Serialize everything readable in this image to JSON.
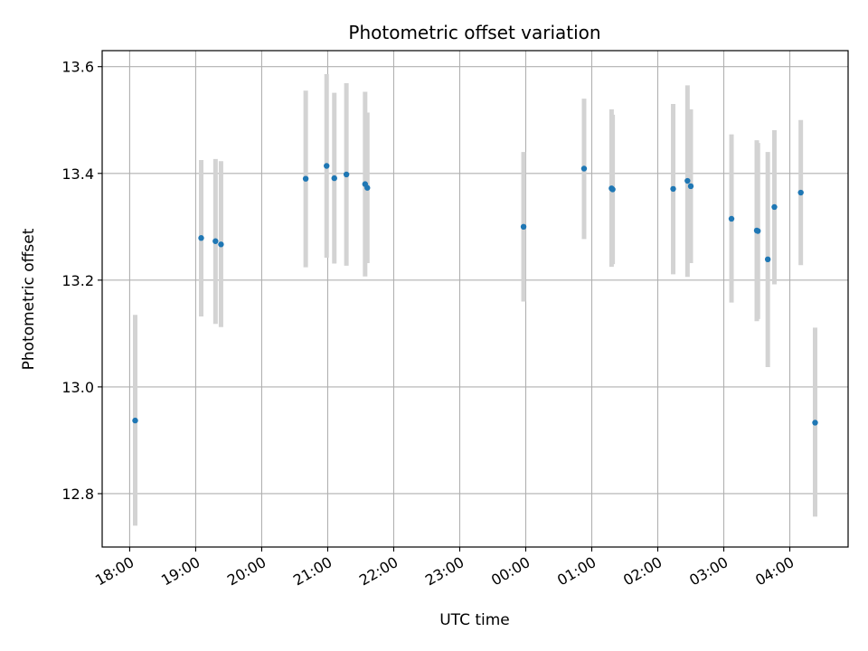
{
  "chart_data": {
    "type": "scatter",
    "title": "Photometric offset variation",
    "xlabel": "UTC time",
    "ylabel": "Photometric offset",
    "x_ticks": [
      "18:00",
      "19:00",
      "20:00",
      "21:00",
      "22:00",
      "23:00",
      "00:00",
      "01:00",
      "02:00",
      "03:00",
      "04:00"
    ],
    "y_ticks": [
      "12.8",
      "13.0",
      "13.2",
      "13.4",
      "13.6"
    ],
    "xlim": [
      "17:35",
      "04:53"
    ],
    "ylim": [
      12.7,
      13.63
    ],
    "grid": true,
    "colors": {
      "point": "#1f77b4",
      "errorbar": "#d3d3d3",
      "grid": "#b0b0b0"
    },
    "points": [
      {
        "x": "18:05",
        "y": 12.937,
        "ylo": 12.74,
        "yhi": 13.135
      },
      {
        "x": "19:05",
        "y": 13.279,
        "ylo": 13.132,
        "yhi": 13.425
      },
      {
        "x": "19:18",
        "y": 13.273,
        "ylo": 13.118,
        "yhi": 13.427
      },
      {
        "x": "19:23",
        "y": 13.267,
        "ylo": 13.112,
        "yhi": 13.423
      },
      {
        "x": "20:40",
        "y": 13.39,
        "ylo": 13.224,
        "yhi": 13.555
      },
      {
        "x": "20:59",
        "y": 13.414,
        "ylo": 13.242,
        "yhi": 13.586
      },
      {
        "x": "21:06",
        "y": 13.391,
        "ylo": 13.231,
        "yhi": 13.551
      },
      {
        "x": "21:17",
        "y": 13.398,
        "ylo": 13.227,
        "yhi": 13.569
      },
      {
        "x": "21:34",
        "y": 13.38,
        "ylo": 13.207,
        "yhi": 13.553
      },
      {
        "x": "21:36",
        "y": 13.373,
        "ylo": 13.232,
        "yhi": 13.514
      },
      {
        "x": "23:58",
        "y": 13.3,
        "ylo": 13.16,
        "yhi": 13.44
      },
      {
        "x": "00:53",
        "y": 13.409,
        "ylo": 13.277,
        "yhi": 13.54
      },
      {
        "x": "01:18",
        "y": 13.372,
        "ylo": 13.225,
        "yhi": 13.52
      },
      {
        "x": "01:19",
        "y": 13.37,
        "ylo": 13.23,
        "yhi": 13.51
      },
      {
        "x": "02:14",
        "y": 13.371,
        "ylo": 13.211,
        "yhi": 13.53
      },
      {
        "x": "02:27",
        "y": 13.386,
        "ylo": 13.206,
        "yhi": 13.565
      },
      {
        "x": "02:30",
        "y": 13.376,
        "ylo": 13.232,
        "yhi": 13.52
      },
      {
        "x": "03:07",
        "y": 13.315,
        "ylo": 13.158,
        "yhi": 13.473
      },
      {
        "x": "03:30",
        "y": 13.293,
        "ylo": 13.123,
        "yhi": 13.462
      },
      {
        "x": "03:31",
        "y": 13.292,
        "ylo": 13.127,
        "yhi": 13.457
      },
      {
        "x": "03:40",
        "y": 13.239,
        "ylo": 13.037,
        "yhi": 13.44
      },
      {
        "x": "03:46",
        "y": 13.337,
        "ylo": 13.192,
        "yhi": 13.481
      },
      {
        "x": "04:10",
        "y": 13.364,
        "ylo": 13.228,
        "yhi": 13.5
      },
      {
        "x": "04:23",
        "y": 12.933,
        "ylo": 12.757,
        "yhi": 13.111
      }
    ]
  }
}
